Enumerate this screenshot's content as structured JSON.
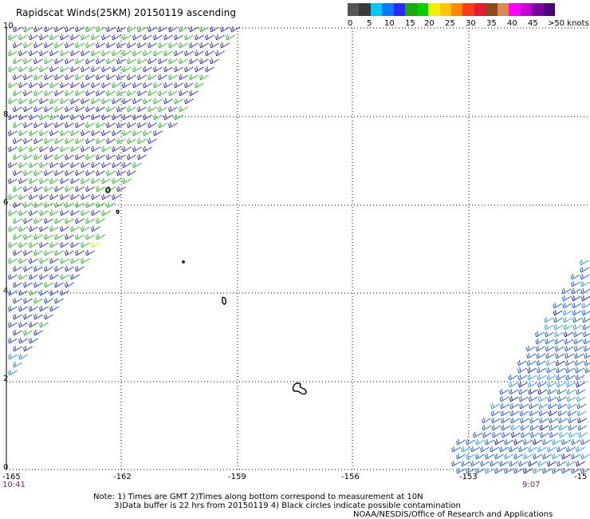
{
  "title": "Rapidscat Winds(25KM) 20150119 ascending",
  "legend": {
    "colors": [
      "#555555",
      "#3a3a3a",
      "#00c8ff",
      "#0a78ff",
      "#2a28ff",
      "#18a810",
      "#00d000",
      "#f0f000",
      "#ffc400",
      "#ff8800",
      "#ff3a1a",
      "#e81a30",
      "#8a4a1e",
      "#d88a50",
      "#ff00ff",
      "#c000d0",
      "#7a00a0",
      "#4a0078"
    ],
    "labels": [
      "0",
      "5",
      "10",
      "15",
      "20",
      "25",
      "30",
      "35",
      "40",
      "45",
      ">50 knots"
    ]
  },
  "axes": {
    "y_labels": [
      "10",
      "8",
      "6",
      "4",
      "2",
      "0"
    ],
    "x_labels": [
      "-165",
      "-162",
      "-159",
      "-156",
      "-153",
      "-15"
    ]
  },
  "times": {
    "left": "10:41",
    "right": "9:07"
  },
  "notes": {
    "line1": "Note: 1) Times are GMT 2)Times along bottom correspond to measurement at 10N",
    "line2": "3)Data buffer is 22 hrs from 20150119 4) Black circles indicate possible contamination",
    "line3": "NOAA/NESDIS/Office of Research and Applications"
  }
}
